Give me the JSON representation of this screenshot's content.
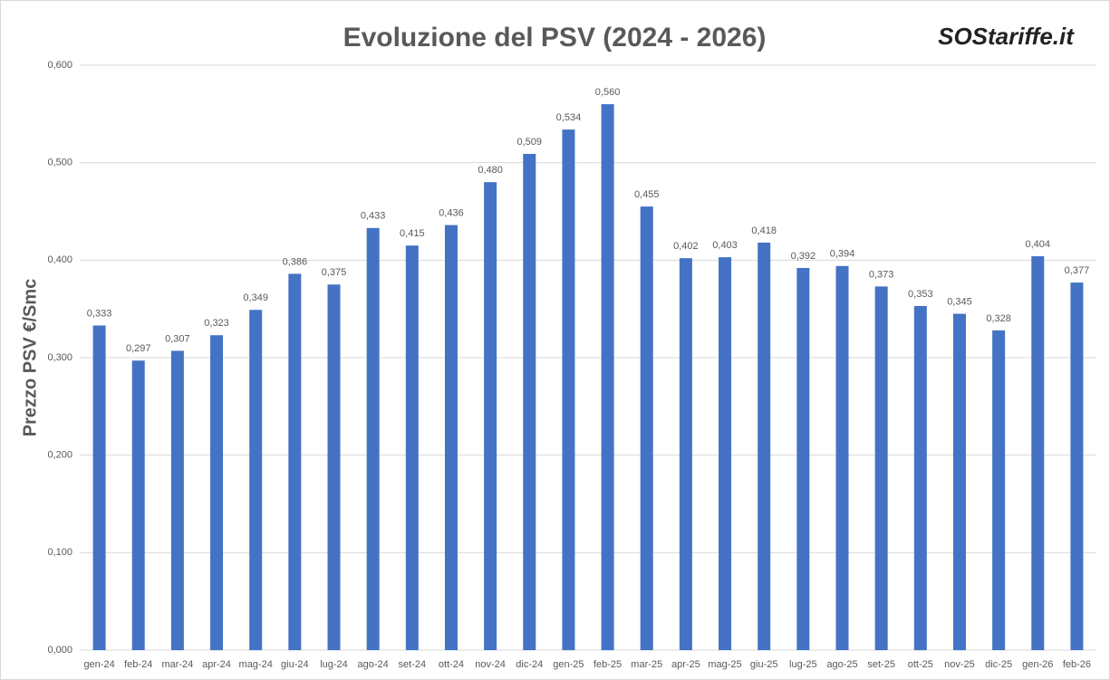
{
  "chart_data": {
    "type": "bar",
    "title": "Evoluzione  del PSV (2024 - 2026)",
    "logo": "SOStariffe.it",
    "y_label": "Prezzo PSV €/Smc",
    "categories": [
      "gen-24",
      "feb-24",
      "mar-24",
      "apr-24",
      "mag-24",
      "giu-24",
      "lug-24",
      "ago-24",
      "set-24",
      "ott-24",
      "nov-24",
      "dic-24",
      "gen-25",
      "feb-25",
      "mar-25",
      "apr-25",
      "mag-25",
      "giu-25",
      "lug-25",
      "ago-25",
      "set-25",
      "ott-25",
      "nov-25",
      "dic-25",
      "gen-26",
      "feb-26"
    ],
    "values": [
      0.333,
      0.297,
      0.307,
      0.323,
      0.349,
      0.386,
      0.375,
      0.433,
      0.415,
      0.436,
      0.48,
      0.509,
      0.534,
      0.56,
      0.455,
      0.402,
      0.403,
      0.418,
      0.392,
      0.394,
      0.373,
      0.353,
      0.345,
      0.328,
      0.404,
      0.377
    ],
    "value_labels": [
      "0,333",
      "0,297",
      "0,307",
      "0,323",
      "0,349",
      "0,386",
      "0,375",
      "0,433",
      "0,415",
      "0,436",
      "0,480",
      "0,509",
      "0,534",
      "0,560",
      "0,455",
      "0,402",
      "0,403",
      "0,418",
      "0,392",
      "0,394",
      "0,373",
      "0,353",
      "0,345",
      "0,328",
      "0,404",
      "0,377"
    ],
    "color": "#4472c4",
    "ylim": [
      0,
      0.6
    ],
    "yticks": [
      {
        "value": 0,
        "label": "0,000"
      },
      {
        "value": 0.1,
        "label": "0,100"
      },
      {
        "value": 0.2,
        "label": "0,200"
      },
      {
        "value": 0.3,
        "label": "0,300"
      },
      {
        "value": 0.4,
        "label": "0,400"
      },
      {
        "value": 0.5,
        "label": "0,500"
      },
      {
        "value": 0.6,
        "label": "0,600"
      }
    ],
    "grid": true
  }
}
